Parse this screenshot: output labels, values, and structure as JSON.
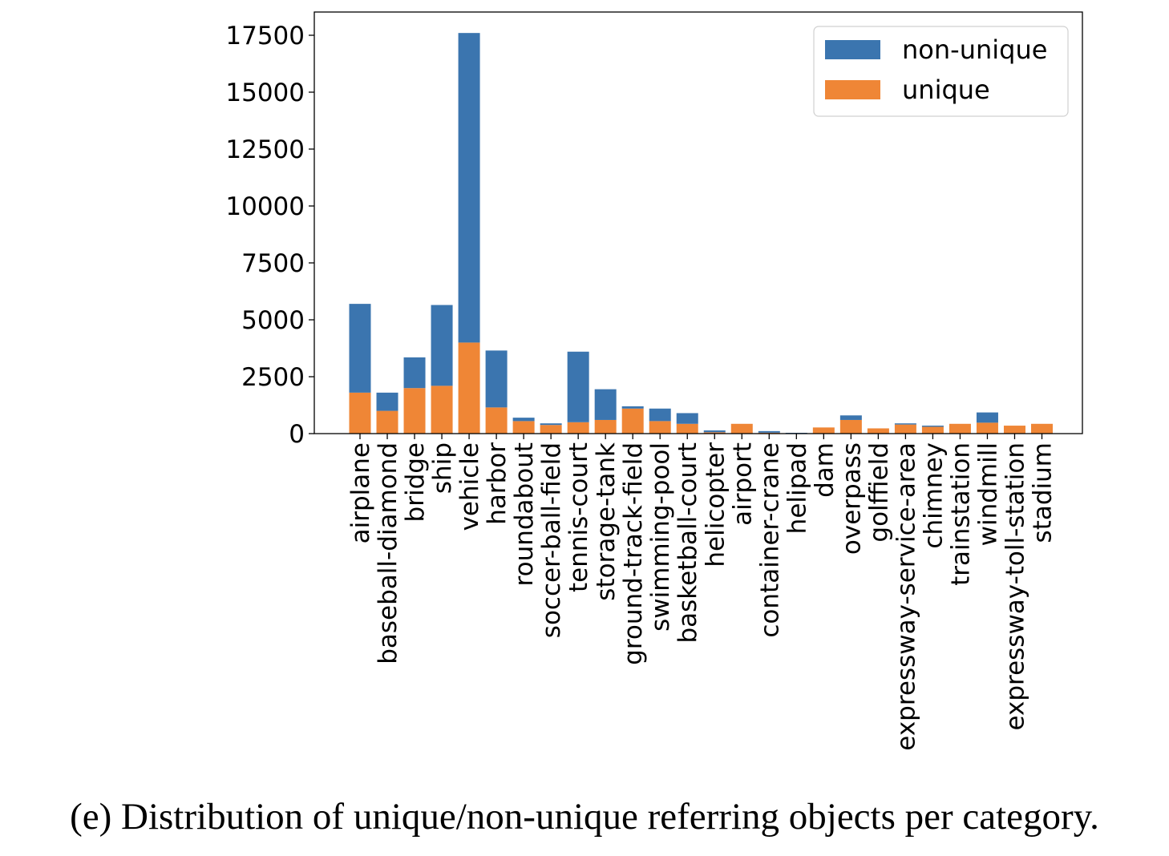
{
  "chart_data": {
    "type": "bar",
    "stacked": true,
    "categories": [
      "airplane",
      "baseball-diamond",
      "bridge",
      "ship",
      "vehicle",
      "harbor",
      "roundabout",
      "soccer-ball-field",
      "tennis-court",
      "storage-tank",
      "ground-track-field",
      "swimming-pool",
      "basketball-court",
      "helicopter",
      "airport",
      "container-crane",
      "helipad",
      "dam",
      "overpass",
      "golffield",
      "expressway-service-area",
      "chimney",
      "trainstation",
      "windmill",
      "expressway-toll-station",
      "stadium"
    ],
    "series": [
      {
        "name": "unique",
        "color": "#ef8636",
        "values": [
          1800,
          1000,
          2000,
          2100,
          4000,
          1150,
          550,
          380,
          500,
          600,
          1100,
          550,
          430,
          60,
          430,
          40,
          10,
          270,
          600,
          230,
          400,
          300,
          430,
          480,
          350,
          430
        ]
      },
      {
        "name": "non-unique",
        "color": "#3b75af",
        "values": [
          3900,
          800,
          1350,
          3550,
          13600,
          2500,
          150,
          70,
          3100,
          1350,
          100,
          550,
          470,
          80,
          0,
          70,
          25,
          0,
          200,
          0,
          50,
          50,
          0,
          450,
          0,
          0
        ]
      }
    ],
    "yticks": [
      "0",
      "2500",
      "5000",
      "7500",
      "10000",
      "12500",
      "15000",
      "17500"
    ],
    "ylim": [
      0,
      18500
    ],
    "legend_position": "top-right",
    "grid": false
  },
  "caption": "(e) Distribution of unique/non-unique referring objects per category."
}
